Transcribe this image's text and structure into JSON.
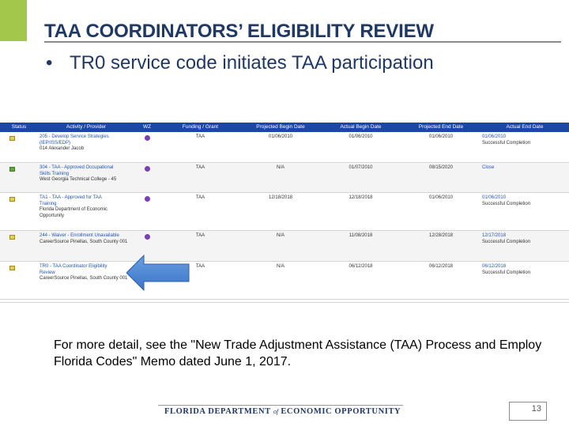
{
  "slide": {
    "title": "TAA COORDINATORS’ ELIGIBILITY REVIEW",
    "bullet_symbol": "•",
    "bullet_text": "TR0 service code initiates TAA participation",
    "note": "For more detail, see the \"New Trade Adjustment Assistance (TAA) Process and Employ Florida Codes\" Memo dated June 1, 2017.",
    "footer_logo": {
      "part1": "FLORIDA DEPARTMENT",
      "of": "of",
      "part2": "ECONOMIC OPPORTUNITY"
    },
    "page_number": "13",
    "accent_color": "#a3c74b",
    "title_color": "#1f3864"
  },
  "table": {
    "header_color": "#1a47a8",
    "columns": [
      "Status",
      "Activity / Provider",
      "WZ",
      "Funding / Grant",
      "Projected Begin Date",
      "Actual Begin Date",
      "Projected End Date",
      "Actual End Date"
    ],
    "rows": [
      {
        "status": "yellow",
        "activity": "205 - Develop Service Strategies",
        "activity_code": "(IEP/ISS/EDP)",
        "provider": "014 Alexander Jacob",
        "funding": "TAA",
        "projected_begin": "01/06/2010",
        "actual_begin": "01/06/2010",
        "projected_end": "01/06/2010",
        "actual_end": "01/06/2010",
        "outcome": "Successful Completion"
      },
      {
        "status": "green",
        "activity": "304 - TAA - Approved Occupational",
        "activity_code": "Skills Training",
        "provider": "West Georgia Technical College - 45",
        "funding": "TAA",
        "projected_begin": "N/A",
        "actual_begin": "01/07/2010",
        "projected_end": "08/15/2020",
        "actual_end": "Close",
        "outcome": ""
      },
      {
        "status": "yellow",
        "activity": "TA1 - TAA - Approved for TAA",
        "activity_code": "Training",
        "provider": "Florida Department of Economic Opportunity",
        "funding": "TAA",
        "projected_begin": "12/18/2018",
        "actual_begin": "12/18/2018",
        "projected_end": "01/06/2010",
        "actual_end": "01/06/2010",
        "outcome": "Successful Completion"
      },
      {
        "status": "yellow",
        "activity": "244 - Waiver - Enrollment Unavailable",
        "activity_code": "",
        "provider": "CareerSource Pinellas, South County 001",
        "funding": "TAA",
        "projected_begin": "N/A",
        "actual_begin": "11/08/2018",
        "projected_end": "12/28/2018",
        "actual_end": "12/17/2018",
        "outcome": "Successful Completion"
      },
      {
        "status": "yellow",
        "activity": "TR0 - TAA Coordinator Eligibility",
        "activity_code": "Review",
        "provider": "CareerSource Pinellas, South County 001",
        "funding": "TAA",
        "projected_begin": "N/A",
        "actual_begin": "06/12/2018",
        "projected_end": "06/12/2018",
        "actual_end": "06/12/2018",
        "outcome": "Successful Completion"
      }
    ]
  }
}
